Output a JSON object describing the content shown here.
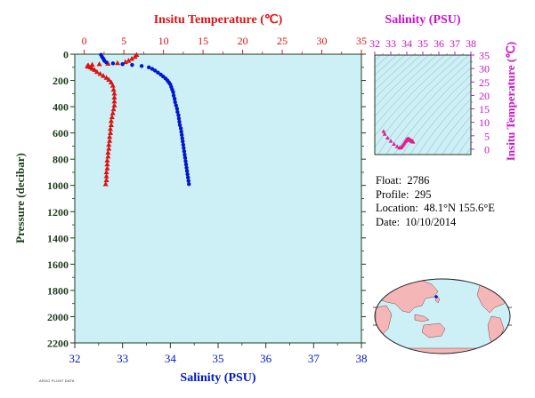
{
  "colors": {
    "plot_bg": "#cdeff6",
    "temperature": "#dd1111",
    "salinity": "#0018c8",
    "ts_axis": "#cc11cc",
    "pressure_label": "#1d3d1d",
    "land": "#f4b6b6",
    "ocean": "#cdeff6"
  },
  "chart_data": [
    {
      "id": "profile",
      "type": "scatter",
      "ylabel": "Pressure (decibar)",
      "y_ticks": [
        0,
        200,
        400,
        600,
        800,
        1000,
        1200,
        1400,
        1600,
        1800,
        2000,
        2200
      ],
      "ylim": [
        0,
        2200
      ],
      "y_reversed": true,
      "top_axis": {
        "label": "Insitu Temperature (℃)",
        "ticks": [
          0,
          5,
          10,
          15,
          20,
          25,
          30,
          35
        ],
        "range": [
          -1.2,
          35
        ],
        "color": "#dd1111"
      },
      "bottom_axis": {
        "label": "Salinity (PSU)",
        "ticks": [
          32,
          33,
          34,
          35,
          36,
          37,
          38
        ],
        "range": [
          32,
          38
        ],
        "color": "#0018c8"
      },
      "series": [
        {
          "variable": "temperature",
          "marker": "triangle",
          "points": [
            [
              6.6,
              5
            ],
            [
              6.4,
              20
            ],
            [
              6.0,
              35
            ],
            [
              5.6,
              50
            ],
            [
              5.2,
              60
            ],
            [
              4.2,
              68
            ],
            [
              3.0,
              72
            ],
            [
              1.9,
              76
            ],
            [
              1.0,
              80
            ],
            [
              0.5,
              85
            ],
            [
              0.4,
              90
            ],
            [
              0.5,
              95
            ],
            [
              0.8,
              100
            ],
            [
              1.0,
              110
            ],
            [
              1.3,
              120
            ],
            [
              1.6,
              135
            ],
            [
              2.0,
              150
            ],
            [
              2.4,
              165
            ],
            [
              2.8,
              180
            ],
            [
              3.1,
              195
            ],
            [
              3.4,
              215
            ],
            [
              3.6,
              240
            ],
            [
              3.7,
              270
            ],
            [
              3.8,
              300
            ],
            [
              3.8,
              330
            ],
            [
              3.8,
              360
            ],
            [
              3.8,
              390
            ],
            [
              3.7,
              420
            ],
            [
              3.6,
              450
            ],
            [
              3.5,
              480
            ],
            [
              3.4,
              510
            ],
            [
              3.4,
              540
            ],
            [
              3.3,
              570
            ],
            [
              3.3,
              600
            ],
            [
              3.2,
              630
            ],
            [
              3.2,
              660
            ],
            [
              3.1,
              690
            ],
            [
              3.1,
              720
            ],
            [
              3.0,
              750
            ],
            [
              3.0,
              780
            ],
            [
              2.9,
              810
            ],
            [
              2.9,
              840
            ],
            [
              2.9,
              870
            ],
            [
              2.8,
              900
            ],
            [
              2.8,
              930
            ],
            [
              2.8,
              960
            ],
            [
              2.7,
              990
            ]
          ]
        },
        {
          "variable": "salinity",
          "marker": "circle",
          "points": [
            [
              32.55,
              5
            ],
            [
              32.57,
              20
            ],
            [
              32.6,
              35
            ],
            [
              32.62,
              50
            ],
            [
              32.66,
              62
            ],
            [
              32.8,
              70
            ],
            [
              33.0,
              76
            ],
            [
              33.2,
              82
            ],
            [
              33.4,
              90
            ],
            [
              33.55,
              100
            ],
            [
              33.62,
              112
            ],
            [
              33.68,
              125
            ],
            [
              33.74,
              140
            ],
            [
              33.8,
              155
            ],
            [
              33.85,
              170
            ],
            [
              33.9,
              185
            ],
            [
              33.94,
              200
            ],
            [
              33.97,
              215
            ],
            [
              34.0,
              230
            ],
            [
              34.02,
              250
            ],
            [
              34.04,
              270
            ],
            [
              34.06,
              290
            ],
            [
              34.07,
              315
            ],
            [
              34.09,
              340
            ],
            [
              34.1,
              365
            ],
            [
              34.12,
              390
            ],
            [
              34.14,
              415
            ],
            [
              34.15,
              440
            ],
            [
              34.17,
              465
            ],
            [
              34.18,
              490
            ],
            [
              34.19,
              515
            ],
            [
              34.2,
              540
            ],
            [
              34.22,
              565
            ],
            [
              34.23,
              590
            ],
            [
              34.24,
              615
            ],
            [
              34.25,
              640
            ],
            [
              34.26,
              665
            ],
            [
              34.27,
              690
            ],
            [
              34.28,
              715
            ],
            [
              34.29,
              740
            ],
            [
              34.3,
              765
            ],
            [
              34.31,
              790
            ],
            [
              34.32,
              815
            ],
            [
              34.33,
              840
            ],
            [
              34.34,
              865
            ],
            [
              34.35,
              890
            ],
            [
              34.36,
              915
            ],
            [
              34.37,
              940
            ],
            [
              34.38,
              965
            ],
            [
              34.39,
              990
            ]
          ]
        }
      ]
    },
    {
      "id": "ts_diagram",
      "type": "scatter",
      "top_axis": {
        "label": "Salinity (PSU)",
        "ticks": [
          32,
          33,
          34,
          35,
          36,
          37,
          38
        ],
        "range": [
          32,
          38
        ]
      },
      "right_axis": {
        "label": "Insitu Temperature (℃)",
        "ticks": [
          0,
          5,
          10,
          15,
          20,
          25,
          30,
          35
        ],
        "range": [
          -2,
          35
        ]
      },
      "grid": "density isolines",
      "series": [
        {
          "variable": "temperature_vs_salinity",
          "marker": "triangle",
          "points": [
            [
              32.55,
              6.6
            ],
            [
              32.62,
              5.6
            ],
            [
              32.8,
              4.2
            ],
            [
              33.0,
              3.0
            ],
            [
              33.2,
              1.9
            ],
            [
              33.4,
              1.0
            ],
            [
              33.55,
              0.5
            ],
            [
              33.62,
              0.5
            ],
            [
              33.68,
              0.9
            ],
            [
              33.74,
              1.3
            ],
            [
              33.8,
              1.8
            ],
            [
              33.85,
              2.3
            ],
            [
              33.9,
              2.8
            ],
            [
              33.94,
              3.1
            ],
            [
              33.97,
              3.4
            ],
            [
              34.0,
              3.6
            ],
            [
              34.04,
              3.7
            ],
            [
              34.07,
              3.8
            ],
            [
              34.1,
              3.8
            ],
            [
              34.14,
              3.7
            ],
            [
              34.17,
              3.6
            ],
            [
              34.2,
              3.4
            ],
            [
              34.23,
              3.3
            ],
            [
              34.26,
              3.2
            ],
            [
              34.29,
              3.1
            ],
            [
              34.32,
              3.0
            ],
            [
              34.35,
              2.9
            ],
            [
              34.38,
              2.8
            ],
            [
              34.39,
              2.7
            ]
          ]
        }
      ]
    }
  ],
  "float_info": {
    "float_label": "Float:",
    "float_value": "2786",
    "profile_label": "Profile:",
    "profile_value": "295",
    "location_label": "Location:",
    "location_value": "48.1°N  155.6°E",
    "date_label": "Date:",
    "date_value": "10/10/2014"
  },
  "credit": "ARGO FLOAT DATA"
}
